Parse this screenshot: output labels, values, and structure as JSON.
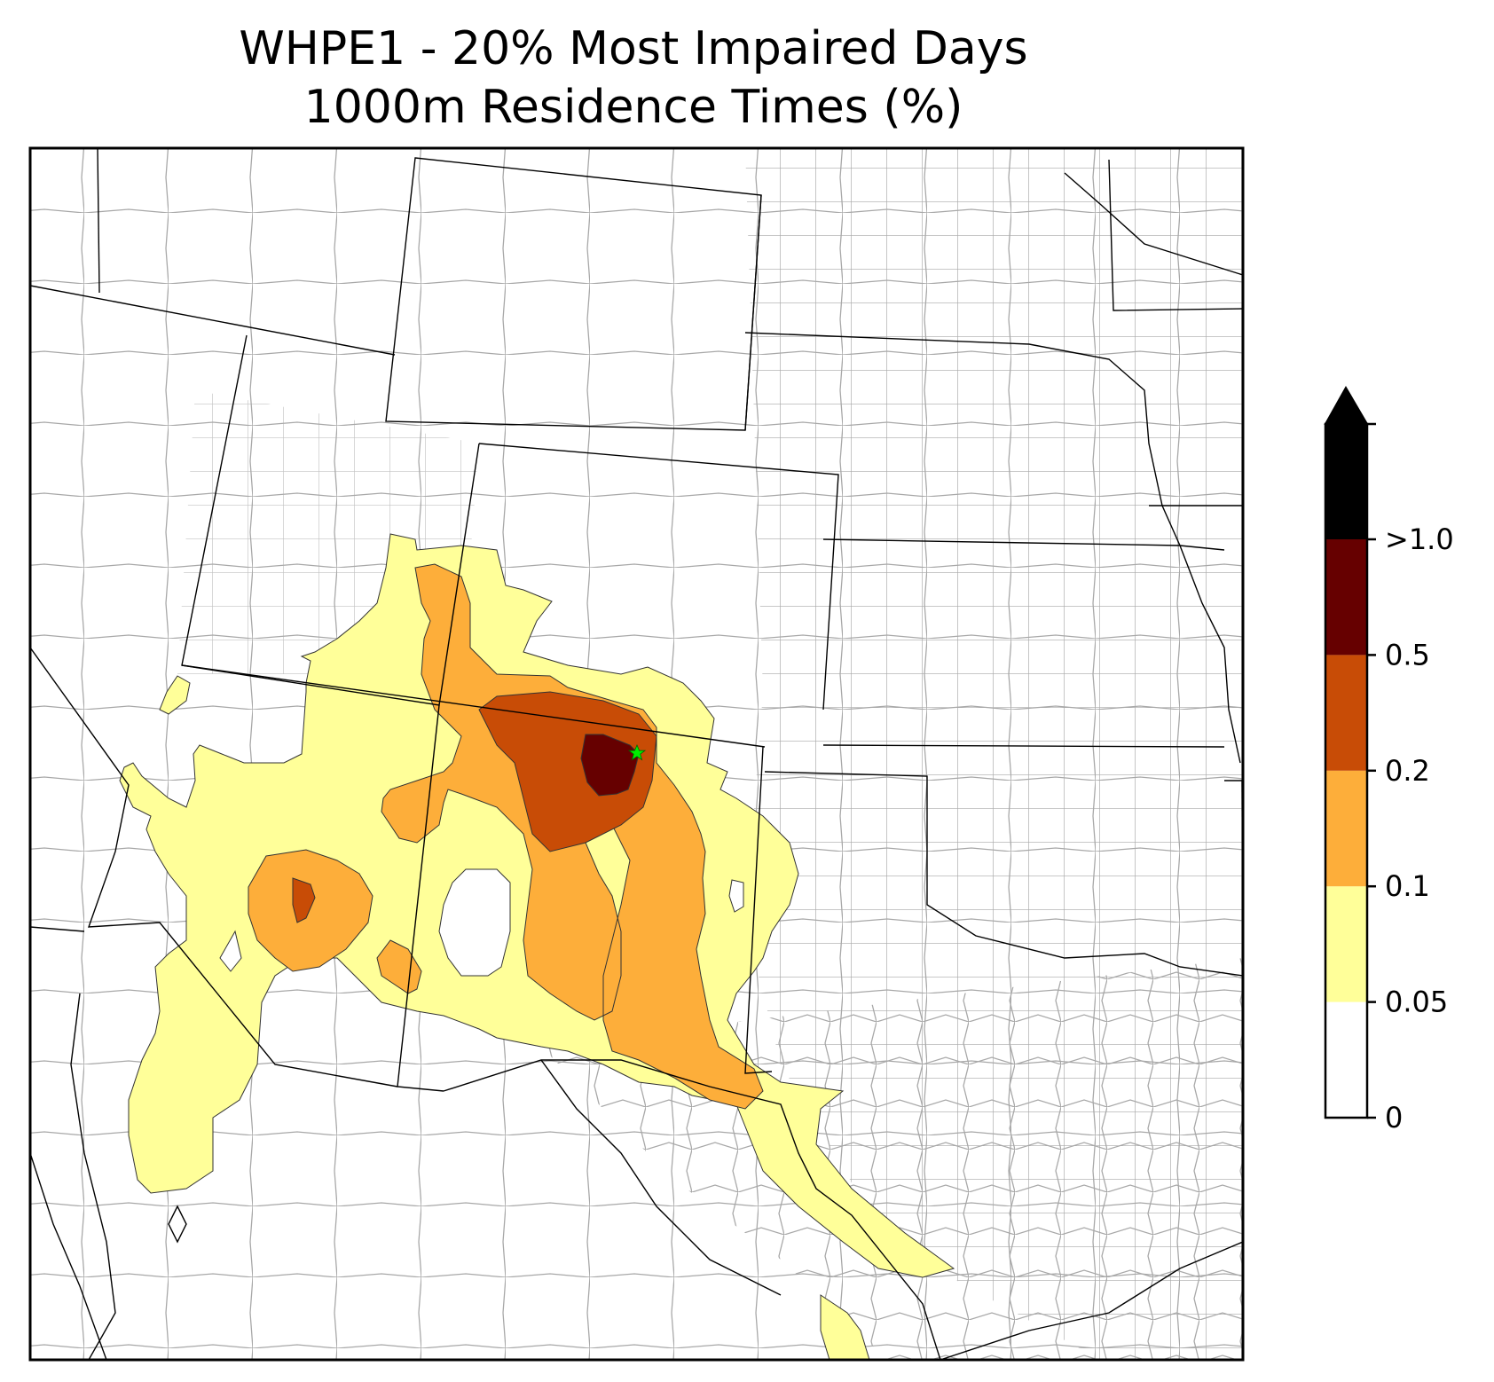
{
  "title": {
    "line1": "WHPE1 - 20% Most Impaired Days",
    "line2": "1000m Residence Times (%)"
  },
  "colorbar": {
    "levels": [
      {
        "label": "0",
        "color": "#ffffff"
      },
      {
        "label": "0.05",
        "color": "#ffff99"
      },
      {
        "label": "0.1",
        "color": "#fdae3a"
      },
      {
        "label": "0.2",
        "color": "#c84c06"
      },
      {
        "label": "0.5",
        "color": "#660000"
      },
      {
        "label": ">1.0",
        "color": "#000000"
      }
    ],
    "extend": "max"
  },
  "colors": {
    "state_border": "#000000",
    "county_border": "#a8a8a8",
    "receptor_marker": "#00ee00"
  },
  "icons": {
    "receptor": "star-icon"
  }
}
